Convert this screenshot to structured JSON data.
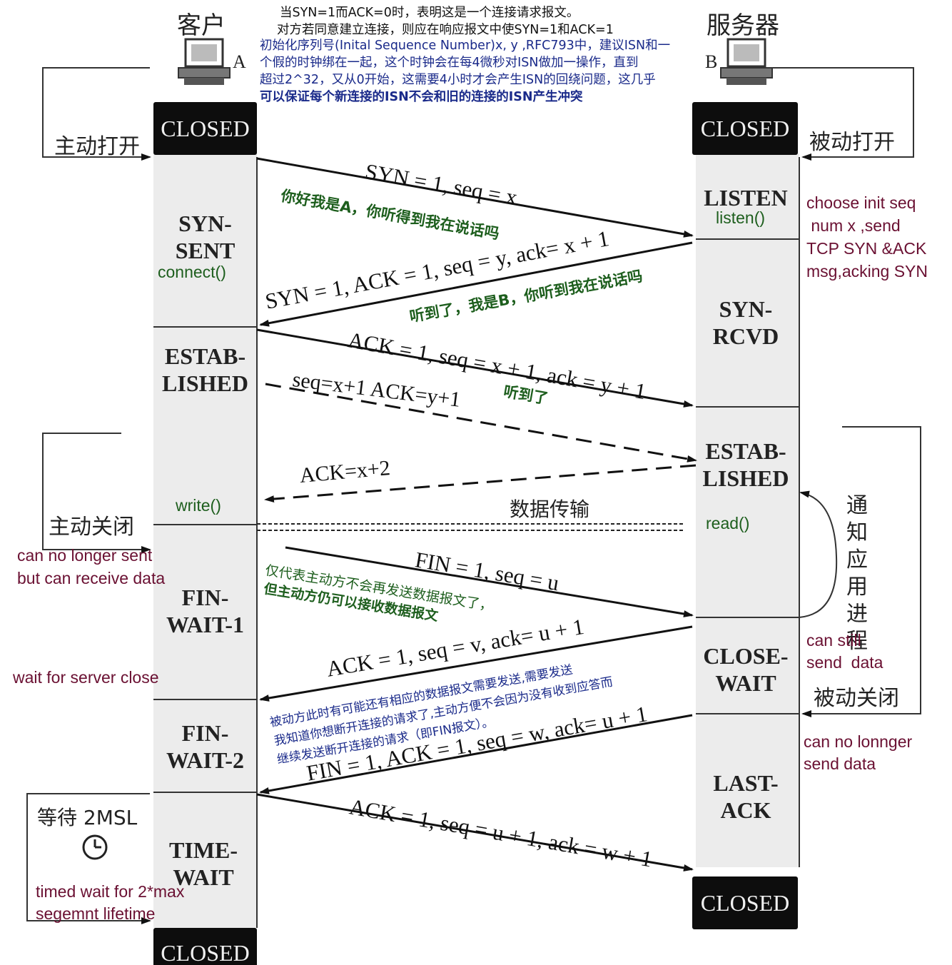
{
  "hosts": {
    "client": "客户",
    "client_letter": "A",
    "server": "服务器",
    "server_letter": "B"
  },
  "top_note": {
    "line1": "当SYN=1而ACK=0时，表明这是一个连接请求报文。",
    "line2": "对方若同意建立连接，则应在响应报文中使SYN=1和ACK=1",
    "line3": "初始化序列号(Inital Sequence Number)x,   y ,RFC793中，建议ISN和一",
    "line4": "个假的时钟绑在一起，这个时钟会在每4微秒对ISN做加一操作，直到",
    "line5": "超过2^32，又从0开始，这需要4小时才会产生ISN的回绕问题，这几乎",
    "line6": "可以保证每个新连接的ISN不会和旧的连接的ISN产生冲突"
  },
  "client_states": {
    "closed_top": "CLOSED",
    "syn_sent": "SYN-\nSENT",
    "established": "ESTAB-\nLISHED",
    "fin_wait_1": "FIN-\nWAIT-1",
    "fin_wait_2": "FIN-\nWAIT-2",
    "time_wait": "TIME-\nWAIT",
    "closed_bottom": "CLOSED"
  },
  "server_states": {
    "closed_top": "CLOSED",
    "listen": "LISTEN",
    "syn_rcvd": "SYN-\nRCVD",
    "established": "ESTAB-\nLISHED",
    "close_wait": "CLOSE-\nWAIT",
    "last_ack": "LAST-\nACK",
    "closed_bottom": "CLOSED"
  },
  "calls": {
    "connect": "connect()",
    "listen": "listen()",
    "write": "write()",
    "read": "read()"
  },
  "side_labels": {
    "active_open": "主动打开",
    "passive_open": "被动打开",
    "active_close": "主动关闭",
    "passive_close": "被动关闭",
    "notify_app": "通\n知\n应\n用\n进\n程",
    "wait_2msl": "等待 2MSL",
    "data_transfer": "数据传输"
  },
  "english_notes": {
    "choose_seq": "choose init seq\n num x ,send\nTCP SYN &ACK\nmsg,acking SYN",
    "cannot_send": "can no longer sent\nbut can receive data",
    "wait_server": "wait for server close",
    "can_still_send": "can still\nsend  data",
    "no_longer_send": "can no lonnger\nsend data",
    "timed_wait": "timed wait for 2*max\nsegemnt lifetime"
  },
  "messages": {
    "m1": "SYN = 1, seq = x",
    "m2": "SYN = 1, ACK = 1, seq = y, ack= x + 1",
    "m3": "ACK = 1, seq = x + 1, ack = y + 1",
    "m3b": "seq=x+1 ACK=y+1",
    "m3c": "ACK=x+2",
    "m4": "FIN = 1, seq = u",
    "m5": "ACK = 1, seq = v, ack= u + 1",
    "m6": "FIN = 1, ACK = 1, seq = w, ack= u + 1",
    "m7": "ACK = 1, seq = u + 1, ack = w + 1"
  },
  "green_notes": {
    "g1": "你好我是A，你听得到我在说话吗",
    "g2": "听到了，我是B，你听到我在说话吗",
    "g3": "听到了",
    "g4a": "仅代表主动方不会再发送数据报文了，",
    "g4b": "但主动方仍可以接收数据报文",
    "g5a": "被动方此时有可能还有相应的数据报文需要发送,需要发送",
    "g5b": "我知道你想断开连接的请求了,主动方便不会因为没有收到应答而",
    "g5c": "继续发送断开连接的请求（即FIN报文）。"
  },
  "colors": {
    "note_blue": "#1a2a8a",
    "green": "#1d5e1d",
    "maroon": "#6a1032",
    "closed_bg": "#0d0d0d"
  }
}
